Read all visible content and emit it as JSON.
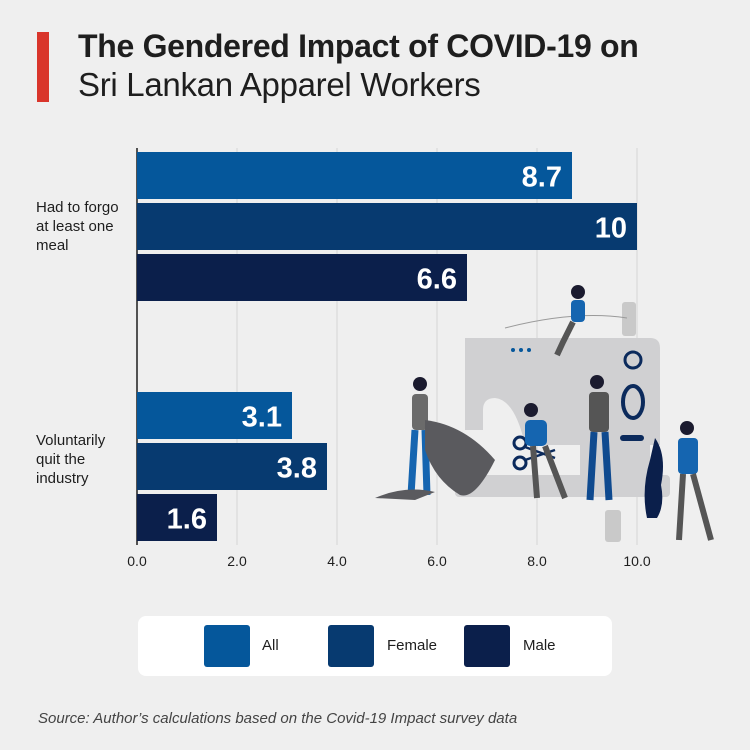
{
  "header": {
    "title_bold": "The Gendered Impact of COVID-19 on",
    "title_light": "Sri Lankan Apparel Workers"
  },
  "chart_data": {
    "type": "bar",
    "orientation": "horizontal",
    "categories": [
      "Had to forgo at least one meal",
      "Voluntarily quit the industry"
    ],
    "category_labels": [
      [
        "Had to forgo",
        "at least one",
        "meal"
      ],
      [
        "Voluntarily",
        "quit the",
        "industry"
      ]
    ],
    "series": [
      {
        "name": "All",
        "color": "#05579b",
        "values": [
          8.7,
          3.1
        ],
        "labels": [
          "8.7",
          "3.1"
        ]
      },
      {
        "name": "Female",
        "color": "#073a70",
        "values": [
          10,
          3.8
        ],
        "labels": [
          "10",
          "3.8"
        ]
      },
      {
        "name": "Male",
        "color": "#0b1f4b",
        "values": [
          6.6,
          1.6
        ],
        "labels": [
          "6.6",
          "1.6"
        ]
      }
    ],
    "xlim": [
      0,
      10
    ],
    "xticks": [
      "0.0",
      "2.0",
      "4.0",
      "6.0",
      "8.0",
      "10.0"
    ],
    "grid": true,
    "legend_position": "bottom",
    "title": "The Gendered Impact of COVID-19 on Sri Lankan Apparel Workers"
  },
  "footer": {
    "source": "Source: Author’s calculations based on the Covid-19 Impact survey data"
  },
  "illustration": {
    "icon": "sewing-machine-workers-illustration"
  }
}
